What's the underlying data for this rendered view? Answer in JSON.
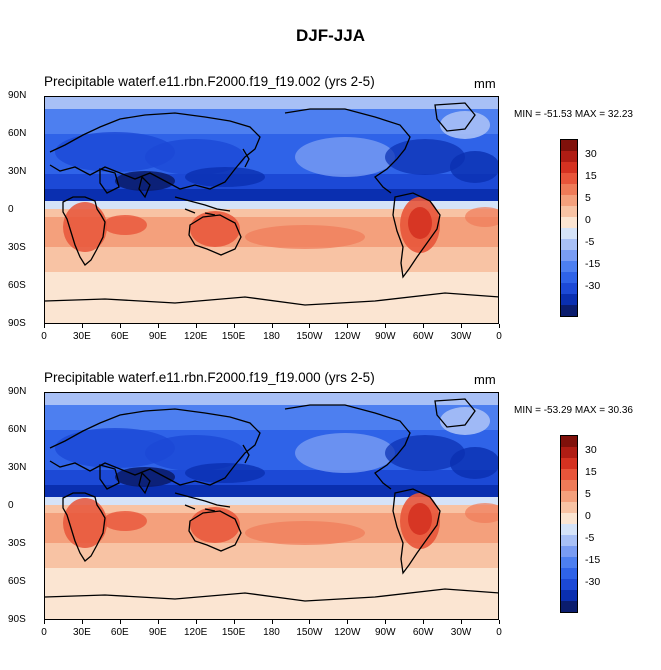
{
  "figure_title": "DJF-JJA",
  "colorbar_colors": [
    "#0b1d6e",
    "#0a2fb0",
    "#1c49d6",
    "#2f63e8",
    "#4d7ff0",
    "#799cf3",
    "#a8c0f6",
    "#d5e3f8",
    "#fbe5d2",
    "#f8c3a4",
    "#f4a07c",
    "#ef7b58",
    "#e8553a",
    "#d53221",
    "#b01d14",
    "#80110b"
  ],
  "colorbar_labels": [
    "30",
    "15",
    "5",
    "0",
    "-5",
    "-15",
    "-30"
  ],
  "lat_labels": [
    "90N",
    "60N",
    "30N",
    "0",
    "30S",
    "60S",
    "90S"
  ],
  "lon_labels": [
    "0",
    "30E",
    "60E",
    "90E",
    "120E",
    "150E",
    "180",
    "150W",
    "120W",
    "90W",
    "60W",
    "30W",
    "0"
  ],
  "panels": [
    {
      "title": "Precipitable waterf.e11.rbn.F2000.f19_f19.002 (yrs 2-5)",
      "units": "mm",
      "minmax": "MIN = -51.53 MAX =  32.23"
    },
    {
      "title": "Precipitable waterf.e11.rbn.F2000.f19_f19.000 (yrs 2-5)",
      "units": "mm",
      "minmax": "MIN = -53.29 MAX = 30.36"
    }
  ]
}
